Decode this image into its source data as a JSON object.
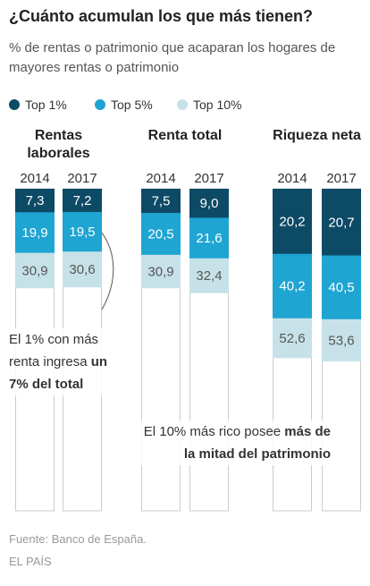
{
  "chart_data": {
    "type": "bar",
    "title": "¿Cuánto acumulan los que más tienen?",
    "subtitle": "% de rentas o patrimonio que acaparan los hogares de mayores rentas o patrimonio",
    "groups": [
      "Rentas laborales",
      "Renta total",
      "Riqueza neta"
    ],
    "categories": [
      "2014",
      "2017",
      "2014",
      "2017",
      "2014",
      "2017"
    ],
    "ylim": [
      0,
      100
    ],
    "series": [
      {
        "name": "Top 1%",
        "color": "#0d4a66",
        "values": [
          7.3,
          7.2,
          7.5,
          9.0,
          20.2,
          20.7
        ],
        "value_labels": [
          "7,3",
          "7,2",
          "7,5",
          "9,0",
          "20,2",
          "20,7"
        ]
      },
      {
        "name": "Top 5%",
        "color": "#1ea5d2",
        "values": [
          19.9,
          19.5,
          20.5,
          21.6,
          40.2,
          40.5
        ],
        "value_labels": [
          "19,9",
          "19,5",
          "20,5",
          "21,6",
          "40,2",
          "40,5"
        ]
      },
      {
        "name": "Top 10%",
        "color": "#c6e2e8",
        "values": [
          30.9,
          30.6,
          30.9,
          32.4,
          52.6,
          53.6
        ],
        "value_labels": [
          "30,9",
          "30,6",
          "30,9",
          "32,4",
          "52,6",
          "53,6"
        ]
      }
    ],
    "annotations": [
      {
        "text": "El 1% con más renta ingresa",
        "bold": "un 7% del total"
      },
      {
        "text": "El 10% más rico posee",
        "bold": "más de la mitad del patrimonio"
      }
    ],
    "source": "Fuente: Banco de España.",
    "credit": "EL PAÍS"
  }
}
